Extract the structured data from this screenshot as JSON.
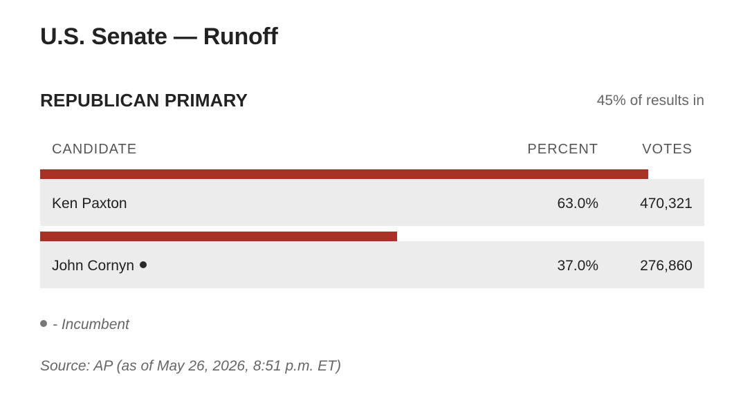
{
  "page": {
    "title": "U.S. Senate — Runoff"
  },
  "race": {
    "name": "REPUBLICAN PRIMARY",
    "reporting": "45% of results in"
  },
  "columns": {
    "candidate": "CANDIDATE",
    "percent": "PERCENT",
    "votes": "VOTES"
  },
  "candidates": [
    {
      "name": "Ken Paxton",
      "percent": "63.0%",
      "percent_value": 63.0,
      "votes": "470,321",
      "incumbent": false
    },
    {
      "name": "John Cornyn",
      "percent": "37.0%",
      "percent_value": 37.0,
      "votes": "276,860",
      "incumbent": true
    }
  ],
  "legend": {
    "incumbent": "- Incumbent"
  },
  "source": "Source: AP (as of May 26, 2026, 8:51 p.m. ET)",
  "colors": {
    "bar": "#a93226",
    "row_bg": "#ececec"
  },
  "bar_scale_max_percent": 68.8
}
